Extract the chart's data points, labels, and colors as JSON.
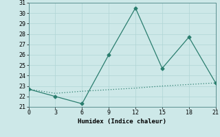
{
  "line1_x": [
    0,
    3,
    6,
    9,
    12,
    15,
    18,
    21
  ],
  "line1_y": [
    22.7,
    22.0,
    21.3,
    26.0,
    30.5,
    24.7,
    27.7,
    23.3
  ],
  "line2_x": [
    0,
    3,
    6,
    9,
    12,
    15,
    18,
    21
  ],
  "line2_y": [
    22.7,
    22.3,
    22.5,
    22.65,
    22.8,
    23.0,
    23.15,
    23.3
  ],
  "line_color": "#2a7d6e",
  "xlabel": "Humidex (Indice chaleur)",
  "xlim": [
    0,
    21
  ],
  "ylim": [
    21,
    31
  ],
  "xticks": [
    0,
    3,
    6,
    9,
    12,
    15,
    18,
    21
  ],
  "yticks": [
    21,
    22,
    23,
    24,
    25,
    26,
    27,
    28,
    29,
    30,
    31
  ],
  "bg_color": "#cde8e8",
  "grid_color": "#b0d4d4"
}
